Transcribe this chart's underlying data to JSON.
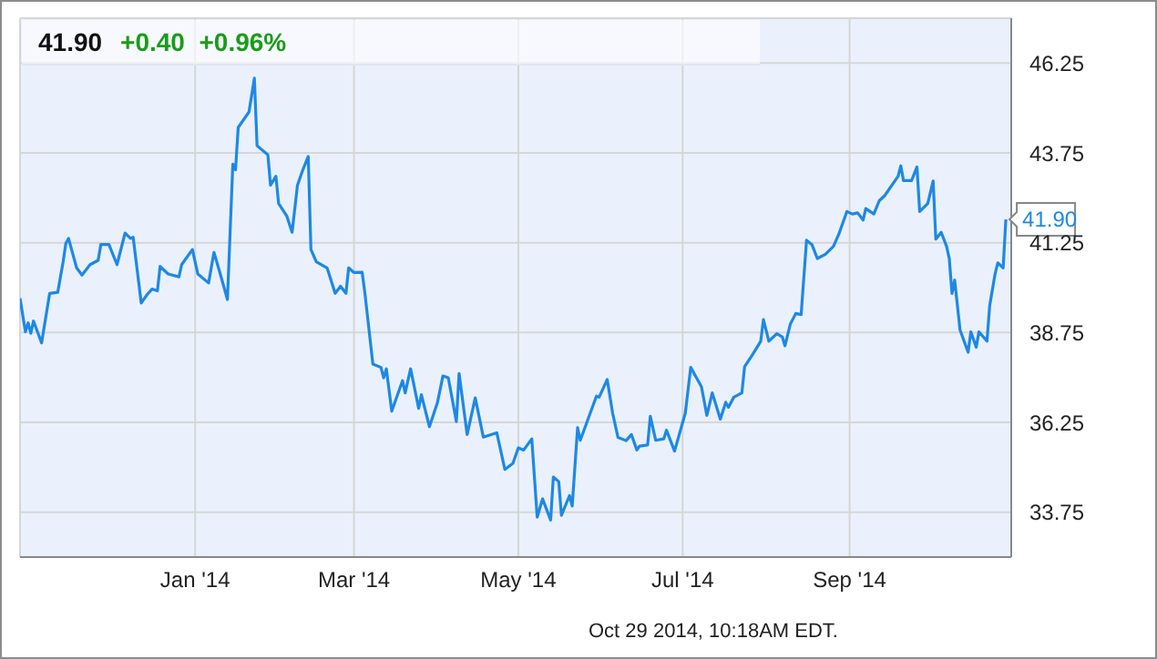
{
  "chart_data": {
    "type": "line",
    "title": "41.90",
    "subtitle": "+0.40  +0.96%",
    "x": [
      "2013-10-28",
      "2013-10-30",
      "2013-10-31",
      "2013-11-01",
      "2013-11-02",
      "2013-11-05",
      "2013-11-08",
      "2013-11-11",
      "2013-11-13",
      "2013-11-14",
      "2013-11-15",
      "2013-11-18",
      "2013-11-20",
      "2013-11-23",
      "2013-11-26",
      "2013-11-27",
      "2013-11-30",
      "2013-12-03",
      "2013-12-06",
      "2013-12-08",
      "2013-12-09",
      "2013-12-12",
      "2013-12-14",
      "2013-12-16",
      "2013-12-18",
      "2013-12-19",
      "2013-12-22",
      "2013-12-26",
      "2013-12-27",
      "2013-12-31",
      "2014-01-02",
      "2014-01-06",
      "2014-01-08",
      "2014-01-10",
      "2014-01-13",
      "2014-01-15",
      "2014-01-16",
      "2014-01-17",
      "2014-01-21",
      "2014-01-23",
      "2014-01-24",
      "2014-01-28",
      "2014-01-29",
      "2014-01-31",
      "2014-02-01",
      "2014-02-04",
      "2014-02-06",
      "2014-02-08",
      "2014-02-10",
      "2014-02-12",
      "2014-02-13",
      "2014-02-15",
      "2014-02-19",
      "2014-02-22",
      "2014-02-24",
      "2014-02-26",
      "2014-02-27",
      "2014-03-01",
      "2014-03-04",
      "2014-03-05",
      "2014-03-08",
      "2014-03-11",
      "2014-03-12",
      "2014-03-13",
      "2014-03-15",
      "2014-03-19",
      "2014-03-20",
      "2014-03-22",
      "2014-03-25",
      "2014-03-26",
      "2014-03-29",
      "2014-04-01",
      "2014-04-03",
      "2014-04-05",
      "2014-04-08",
      "2014-04-09",
      "2014-04-12",
      "2014-04-15",
      "2014-04-18",
      "2014-04-23",
      "2014-04-26",
      "2014-04-29",
      "2014-05-01",
      "2014-05-03",
      "2014-05-06",
      "2014-05-08",
      "2014-05-10",
      "2014-05-13",
      "2014-05-14",
      "2014-05-16",
      "2014-05-17",
      "2014-05-20",
      "2014-05-21",
      "2014-05-23",
      "2014-05-24",
      "2014-05-30",
      "2014-05-31",
      "2014-06-03",
      "2014-06-05",
      "2014-06-07",
      "2014-06-10",
      "2014-06-12",
      "2014-06-14",
      "2014-06-15",
      "2014-06-18",
      "2014-06-19",
      "2014-06-21",
      "2014-06-24",
      "2014-06-25",
      "2014-06-28",
      "2014-07-02",
      "2014-07-04",
      "2014-07-08",
      "2014-07-10",
      "2014-07-12",
      "2014-07-15",
      "2014-07-17",
      "2014-07-18",
      "2014-07-20",
      "2014-07-23",
      "2014-07-24",
      "2014-07-27",
      "2014-07-30",
      "2014-07-31",
      "2014-08-02",
      "2014-08-05",
      "2014-08-07",
      "2014-08-08",
      "2014-08-10",
      "2014-08-12",
      "2014-08-14",
      "2014-08-16",
      "2014-08-18",
      "2014-08-20",
      "2014-08-23",
      "2014-08-26",
      "2014-08-28",
      "2014-08-31",
      "2014-09-02",
      "2014-09-04",
      "2014-09-06",
      "2014-09-07",
      "2014-09-10",
      "2014-09-12",
      "2014-09-14",
      "2014-09-19",
      "2014-09-20",
      "2014-09-21",
      "2014-09-24",
      "2014-09-26",
      "2014-09-27",
      "2014-09-30",
      "2014-10-02",
      "2014-10-03",
      "2014-10-05",
      "2014-10-07",
      "2014-10-08",
      "2014-10-09",
      "2014-10-10",
      "2014-10-12",
      "2014-10-15",
      "2014-10-16",
      "2014-10-18",
      "2014-10-19",
      "2014-10-22",
      "2014-10-23",
      "2014-10-25",
      "2014-10-26",
      "2014-10-28",
      "2014-10-29"
    ],
    "values": [
      39.7,
      38.77,
      39.02,
      38.73,
      39.07,
      38.46,
      39.84,
      39.87,
      40.72,
      41.23,
      41.37,
      40.55,
      40.35,
      40.64,
      40.76,
      41.2,
      41.2,
      40.64,
      41.52,
      41.37,
      41.4,
      39.57,
      39.79,
      39.96,
      39.91,
      40.59,
      40.38,
      40.3,
      40.64,
      41.06,
      40.38,
      40.13,
      40.98,
      40.47,
      39.67,
      43.44,
      43.28,
      44.46,
      44.89,
      45.83,
      43.95,
      43.7,
      42.85,
      43.1,
      42.34,
      42.0,
      41.54,
      42.85,
      43.28,
      43.65,
      41.06,
      40.72,
      40.55,
      39.84,
      40.04,
      39.84,
      40.55,
      40.42,
      40.43,
      39.87,
      37.87,
      37.78,
      37.49,
      37.74,
      36.56,
      37.41,
      37.07,
      37.74,
      36.64,
      37.02,
      36.13,
      36.81,
      37.54,
      37.49,
      36.27,
      37.61,
      35.91,
      36.93,
      35.84,
      35.96,
      34.94,
      35.11,
      35.54,
      35.48,
      35.79,
      33.61,
      34.12,
      33.53,
      34.73,
      34.6,
      33.66,
      34.21,
      33.92,
      36.1,
      35.75,
      36.98,
      36.95,
      37.44,
      36.51,
      35.83,
      35.74,
      35.91,
      35.48,
      35.59,
      35.62,
      36.42,
      35.75,
      35.79,
      36.03,
      35.45,
      36.51,
      37.78,
      37.24,
      36.44,
      37.07,
      36.34,
      36.81,
      36.67,
      36.95,
      37.07,
      37.8,
      38.14,
      38.51,
      39.11,
      38.51,
      38.72,
      38.63,
      38.38,
      38.99,
      39.28,
      39.25,
      41.32,
      41.2,
      40.81,
      40.93,
      41.15,
      41.49,
      42.12,
      42.05,
      42.08,
      41.88,
      42.2,
      42.05,
      42.42,
      42.56,
      43.1,
      43.39,
      42.98,
      42.98,
      43.36,
      42.12,
      42.34,
      42.97,
      41.35,
      41.54,
      41.15,
      40.81,
      39.84,
      40.21,
      38.82,
      38.2,
      38.77,
      38.34,
      38.77,
      38.51,
      39.5,
      40.38,
      40.69,
      40.55,
      41.9
    ],
    "color": "#1e88e5",
    "xlim": [
      "2013-10-28",
      "2014-10-31"
    ],
    "xticks": [
      {
        "value": "2014-01-01",
        "label": "Jan '14"
      },
      {
        "value": "2014-03-01",
        "label": "Mar '14"
      },
      {
        "value": "2014-05-01",
        "label": "May '14"
      },
      {
        "value": "2014-07-01",
        "label": "Jul '14"
      },
      {
        "value": "2014-09-01",
        "label": "Sep '14"
      }
    ],
    "ylim": [
      32.5,
      47.5
    ],
    "yticks": [
      33.75,
      36.25,
      38.75,
      41.25,
      43.75,
      46.25
    ],
    "grid": true,
    "annotations": [
      {
        "text": "41.90",
        "x": "2014-10-29",
        "y": 41.9
      },
      "Oct 29 2014, 10:18AM EDT."
    ]
  }
}
